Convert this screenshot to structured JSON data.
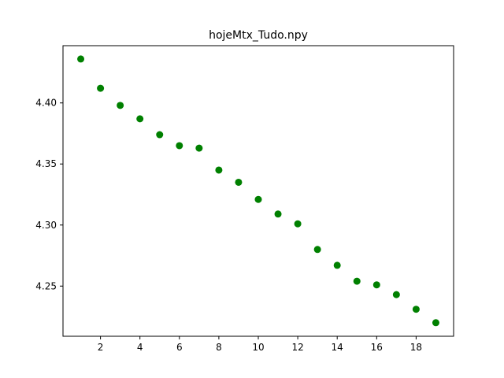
{
  "chart_data": {
    "type": "scatter",
    "title": "hojeMtx_Tudo.npy",
    "xlabel": "",
    "ylabel": "",
    "xlim": [
      0.1,
      19.9
    ],
    "ylim": [
      4.2089,
      4.4469
    ],
    "xticks": [
      2,
      4,
      6,
      8,
      10,
      12,
      14,
      16,
      18
    ],
    "yticks": [
      4.25,
      4.3,
      4.35,
      4.4
    ],
    "ytick_labels": [
      "4.25",
      "4.30",
      "4.35",
      "4.40"
    ],
    "grid": false,
    "marker_color": "#008000",
    "x": [
      1,
      2,
      3,
      4,
      5,
      6,
      7,
      8,
      9,
      10,
      11,
      12,
      13,
      14,
      15,
      16,
      17,
      18,
      19
    ],
    "y": [
      4.436,
      4.412,
      4.398,
      4.387,
      4.374,
      4.365,
      4.363,
      4.345,
      4.335,
      4.321,
      4.309,
      4.301,
      4.28,
      4.267,
      4.254,
      4.251,
      4.243,
      4.231,
      4.22
    ]
  }
}
